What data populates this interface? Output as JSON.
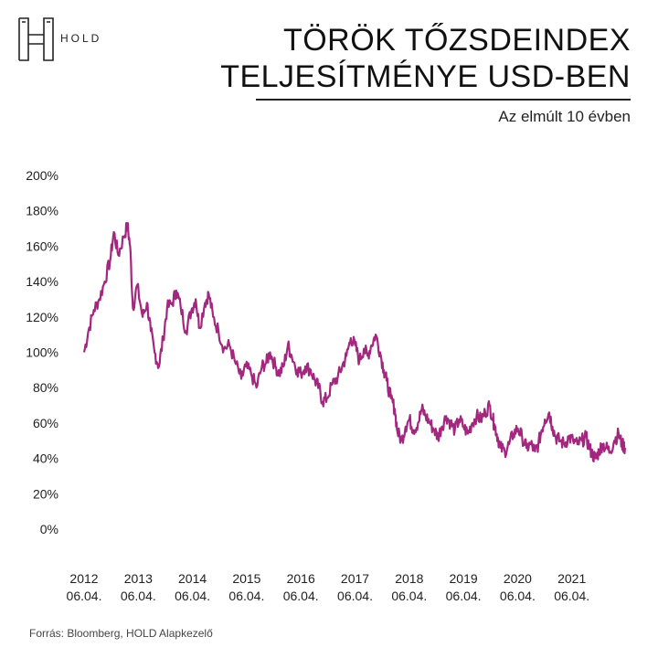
{
  "brand": {
    "logo_text": "HOLD"
  },
  "header": {
    "title_line1": "TÖRÖK TŐZSDEINDEX",
    "title_line2": "TELJESÍTMÉNYE USD-BEN",
    "subtitle": "Az elmúlt 10 évben"
  },
  "footer": {
    "source": "Forrás: Bloomberg, HOLD Alapkezelő"
  },
  "colors": {
    "line": "#a3267f",
    "text": "#111111"
  },
  "chart_data": {
    "type": "line",
    "title": "TÖRÖK TŐZSDEINDEX TELJESÍTMÉNYE USD-BEN",
    "subtitle": "Az elmúlt 10 évben",
    "y_ticks": [
      "0%",
      "20%",
      "40%",
      "60%",
      "80%",
      "100%",
      "120%",
      "140%",
      "160%",
      "180%",
      "200%"
    ],
    "ylim": [
      0,
      200
    ],
    "x_ticks": [
      [
        "2012",
        "06.04."
      ],
      [
        "2013",
        "06.04."
      ],
      [
        "2014",
        "06.04."
      ],
      [
        "2015",
        "06.04."
      ],
      [
        "2016",
        "06.04."
      ],
      [
        "2017",
        "06.04."
      ],
      [
        "2018",
        "06.04."
      ],
      [
        "2019",
        "06.04."
      ],
      [
        "2020",
        "06.04."
      ],
      [
        "2021",
        "06.04."
      ]
    ],
    "xlim": [
      2012.42,
      2022.4
    ],
    "grid": false,
    "series": [
      {
        "values": [
          [
            2012.42,
            100
          ],
          [
            2012.5,
            112
          ],
          [
            2012.6,
            124
          ],
          [
            2012.7,
            130
          ],
          [
            2012.8,
            140
          ],
          [
            2012.9,
            152
          ],
          [
            2012.97,
            168
          ],
          [
            2013.05,
            155
          ],
          [
            2013.15,
            165
          ],
          [
            2013.22,
            172
          ],
          [
            2013.27,
            160
          ],
          [
            2013.32,
            125
          ],
          [
            2013.4,
            138
          ],
          [
            2013.5,
            120
          ],
          [
            2013.58,
            128
          ],
          [
            2013.65,
            112
          ],
          [
            2013.72,
            100
          ],
          [
            2013.8,
            92
          ],
          [
            2013.88,
            108
          ],
          [
            2013.95,
            125
          ],
          [
            2014.05,
            128
          ],
          [
            2014.12,
            135
          ],
          [
            2014.2,
            126
          ],
          [
            2014.3,
            112
          ],
          [
            2014.4,
            124
          ],
          [
            2014.48,
            130
          ],
          [
            2014.55,
            114
          ],
          [
            2014.65,
            128
          ],
          [
            2014.72,
            133
          ],
          [
            2014.8,
            120
          ],
          [
            2014.9,
            112
          ],
          [
            2015.0,
            102
          ],
          [
            2015.1,
            104
          ],
          [
            2015.2,
            95
          ],
          [
            2015.32,
            85
          ],
          [
            2015.4,
            92
          ],
          [
            2015.5,
            88
          ],
          [
            2015.6,
            80
          ],
          [
            2015.7,
            92
          ],
          [
            2015.78,
            94
          ],
          [
            2015.85,
            100
          ],
          [
            2015.95,
            92
          ],
          [
            2016.02,
            88
          ],
          [
            2016.1,
            92
          ],
          [
            2016.18,
            104
          ],
          [
            2016.25,
            98
          ],
          [
            2016.35,
            90
          ],
          [
            2016.42,
            88
          ],
          [
            2016.5,
            92
          ],
          [
            2016.6,
            90
          ],
          [
            2016.68,
            84
          ],
          [
            2016.75,
            80
          ],
          [
            2016.82,
            72
          ],
          [
            2016.9,
            74
          ],
          [
            2017.0,
            82
          ],
          [
            2017.1,
            86
          ],
          [
            2017.18,
            92
          ],
          [
            2017.26,
            98
          ],
          [
            2017.34,
            108
          ],
          [
            2017.42,
            104
          ],
          [
            2017.5,
            95
          ],
          [
            2017.58,
            102
          ],
          [
            2017.65,
            98
          ],
          [
            2017.72,
            104
          ],
          [
            2017.8,
            110
          ],
          [
            2017.88,
            100
          ],
          [
            2017.95,
            90
          ],
          [
            2018.0,
            84
          ],
          [
            2018.08,
            74
          ],
          [
            2018.15,
            68
          ],
          [
            2018.2,
            55
          ],
          [
            2018.28,
            50
          ],
          [
            2018.35,
            58
          ],
          [
            2018.42,
            62
          ],
          [
            2018.5,
            56
          ],
          [
            2018.58,
            60
          ],
          [
            2018.65,
            68
          ],
          [
            2018.72,
            64
          ],
          [
            2018.8,
            60
          ],
          [
            2018.88,
            56
          ],
          [
            2018.95,
            52
          ],
          [
            2019.02,
            58
          ],
          [
            2019.1,
            64
          ],
          [
            2019.18,
            60
          ],
          [
            2019.26,
            56
          ],
          [
            2019.34,
            62
          ],
          [
            2019.42,
            58
          ],
          [
            2019.5,
            54
          ],
          [
            2019.58,
            60
          ],
          [
            2019.66,
            64
          ],
          [
            2019.74,
            62
          ],
          [
            2019.82,
            66
          ],
          [
            2019.9,
            70
          ],
          [
            2019.96,
            62
          ],
          [
            2020.0,
            58
          ],
          [
            2020.05,
            52
          ],
          [
            2020.1,
            46
          ],
          [
            2020.18,
            44
          ],
          [
            2020.26,
            48
          ],
          [
            2020.34,
            54
          ],
          [
            2020.42,
            57
          ],
          [
            2020.5,
            52
          ],
          [
            2020.58,
            46
          ],
          [
            2020.66,
            48
          ],
          [
            2020.74,
            44
          ],
          [
            2020.8,
            48
          ],
          [
            2020.86,
            56
          ],
          [
            2020.92,
            62
          ],
          [
            2021.0,
            66
          ],
          [
            2021.06,
            58
          ],
          [
            2021.12,
            52
          ],
          [
            2021.2,
            50
          ],
          [
            2021.28,
            48
          ],
          [
            2021.36,
            52
          ],
          [
            2021.44,
            50
          ],
          [
            2021.52,
            48
          ],
          [
            2021.6,
            50
          ],
          [
            2021.68,
            52
          ],
          [
            2021.74,
            46
          ],
          [
            2021.8,
            42
          ],
          [
            2021.86,
            40
          ],
          [
            2021.92,
            44
          ],
          [
            2021.98,
            48
          ],
          [
            2022.05,
            46
          ],
          [
            2022.12,
            44
          ],
          [
            2022.2,
            50
          ],
          [
            2022.28,
            54
          ],
          [
            2022.34,
            48
          ],
          [
            2022.4,
            46
          ]
        ]
      }
    ]
  }
}
